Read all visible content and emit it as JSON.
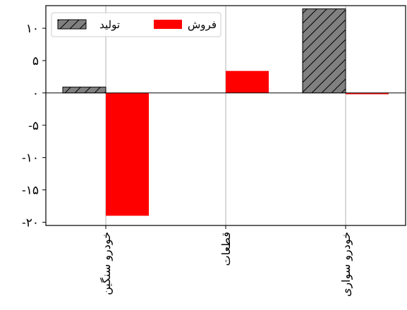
{
  "chart_data": {
    "type": "bar",
    "categories": [
      "خودرو سنگین",
      "قطعات",
      "خودرو سواری"
    ],
    "series": [
      {
        "name": "تولید",
        "values": [
          0.9,
          0,
          13
        ],
        "color": "#808080",
        "hatch": true
      },
      {
        "name": "فروش",
        "values": [
          -19,
          3.4,
          -0.2
        ],
        "color": "#ff0000",
        "hatch": false
      }
    ],
    "ylim": [
      -20.5,
      13.5
    ],
    "yticks": [
      10,
      5,
      0,
      -5,
      -10,
      -15,
      -20
    ],
    "ytick_labels": [
      "۱۰",
      "۵",
      "۰",
      "-۵",
      "-۱۰",
      "-۱۵",
      "-۲۰"
    ],
    "xlabel": "",
    "ylabel": "",
    "grid": "vertical",
    "zero_line": true,
    "legend_position": "top-left"
  }
}
